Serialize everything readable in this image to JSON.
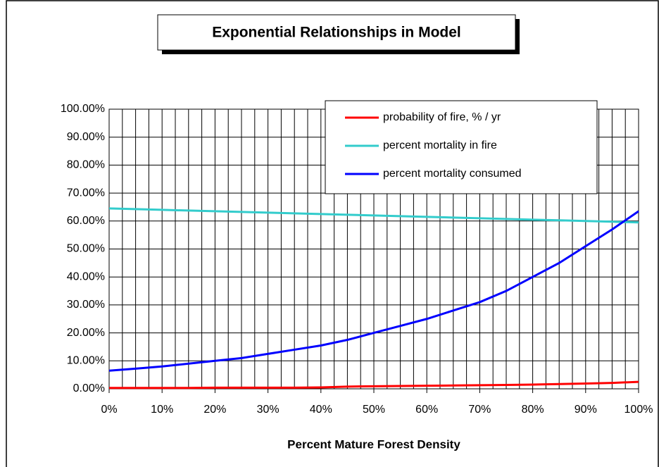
{
  "chart_data": {
    "type": "line",
    "title": "Exponential Relationships in Model",
    "x_label": "Percent Mature Forest Density",
    "x": [
      0,
      5,
      10,
      15,
      20,
      25,
      30,
      35,
      40,
      45,
      50,
      55,
      60,
      65,
      70,
      75,
      80,
      85,
      90,
      95,
      100
    ],
    "series": [
      {
        "name": "probability of fire, % / yr",
        "color": "#ff0000",
        "values": [
          0.3,
          0.3,
          0.3,
          0.3,
          0.4,
          0.4,
          0.4,
          0.4,
          0.5,
          0.8,
          0.9,
          1,
          1.1,
          1.2,
          1.3,
          1.4,
          1.5,
          1.7,
          1.9,
          2.1,
          2.5
        ]
      },
      {
        "name": "percent mortality in fire",
        "color": "#33cccc",
        "values": [
          64.5,
          64.25,
          64,
          63.75,
          63.5,
          63.25,
          63,
          62.75,
          62.5,
          62.25,
          62,
          61.75,
          61.5,
          61.25,
          61,
          60.75,
          60.5,
          60.25,
          60,
          59.75,
          59.5
        ]
      },
      {
        "name": "percent mortality consumed",
        "color": "#0000ff",
        "values": [
          6.5,
          7.2,
          8,
          9,
          10,
          11,
          12.5,
          14,
          15.5,
          17.5,
          20,
          22.5,
          25,
          28,
          31,
          35,
          40,
          45,
          51,
          57,
          63.5
        ]
      }
    ],
    "xlim": [
      0,
      100
    ],
    "xticks": [
      {
        "value": 0,
        "label": "0%"
      },
      {
        "value": 10,
        "label": "10%"
      },
      {
        "value": 20,
        "label": "20%"
      },
      {
        "value": 30,
        "label": "30%"
      },
      {
        "value": 40,
        "label": "40%"
      },
      {
        "value": 50,
        "label": "50%"
      },
      {
        "value": 60,
        "label": "60%"
      },
      {
        "value": 70,
        "label": "70%"
      },
      {
        "value": 80,
        "label": "80%"
      },
      {
        "value": 90,
        "label": "90%"
      },
      {
        "value": 100,
        "label": "100%"
      }
    ],
    "xgrid_step": 2.5,
    "ylim": [
      0,
      100
    ],
    "yticks": [
      {
        "value": 0,
        "label": "0.00%"
      },
      {
        "value": 10,
        "label": "10.00%"
      },
      {
        "value": 20,
        "label": "20.00%"
      },
      {
        "value": 30,
        "label": "30.00%"
      },
      {
        "value": 40,
        "label": "40.00%"
      },
      {
        "value": 50,
        "label": "50.00%"
      },
      {
        "value": 60,
        "label": "60.00%"
      },
      {
        "value": 70,
        "label": "70.00%"
      },
      {
        "value": 80,
        "label": "80.00%"
      },
      {
        "value": 90,
        "label": "90.00%"
      },
      {
        "value": 100,
        "label": "100.00%"
      }
    ],
    "grid": true,
    "legend": "top-right"
  }
}
